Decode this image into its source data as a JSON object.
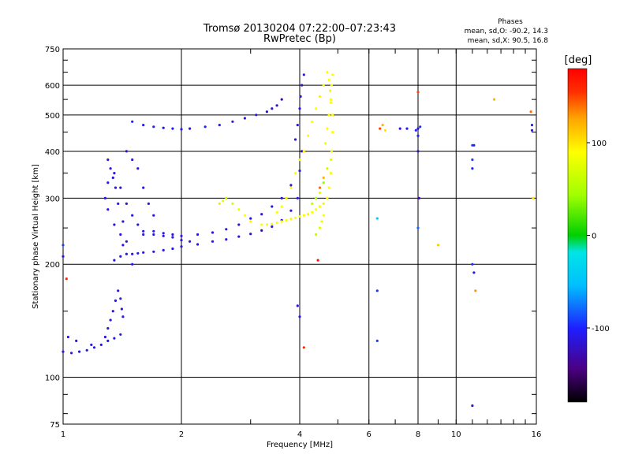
{
  "chart_data": {
    "type": "scatter",
    "title": "Tromsø 20130204 07:22:00–07:23:43",
    "subtitle": "RwPretec (Bp)",
    "xlabel": "Frequency [MHz]",
    "ylabel": "Stationary phase Virtual Height [km]",
    "x_scale": "log",
    "y_scale": "log",
    "xlim": [
      1,
      16
    ],
    "ylim": [
      75,
      750
    ],
    "x_ticks": [
      1,
      2,
      4,
      6,
      8,
      10,
      16
    ],
    "x_tick_labels": [
      "1",
      "2",
      "4",
      "6",
      "8",
      "10",
      "16"
    ],
    "y_ticks": [
      75,
      100,
      200,
      300,
      400,
      500,
      600,
      750
    ],
    "y_tick_labels": [
      "75",
      "100",
      "200",
      "300",
      "400",
      "500",
      "600",
      "750"
    ],
    "grid": true,
    "phases_legend": {
      "heading": "Phases",
      "line_o": "mean, sd,O:  -90.2, 14.3",
      "line_x": "mean, sd,X:  90.5, 16.8"
    },
    "colorbar": {
      "label": "[deg]",
      "range": [
        -180,
        180
      ],
      "ticks": [
        100,
        0,
        -100
      ],
      "tick_labels": [
        "100",
        "0",
        "-100"
      ],
      "colors": [
        "#000000",
        "#4b0082",
        "#1e1eff",
        "#00bfff",
        "#00e5e5",
        "#00d000",
        "#a0ff00",
        "#ffff00",
        "#ffa500",
        "#ff3000",
        "#ff0000"
      ]
    },
    "series": [
      {
        "x": [
          1.0,
          1.05,
          1.1,
          1.15,
          1.2,
          1.25,
          1.3,
          1.35,
          1.4,
          1.03,
          1.08,
          1.18,
          1.28,
          1.3,
          1.32,
          1.34,
          1.36,
          1.38,
          1.4,
          1.41,
          1.42,
          1.35,
          1.4,
          1.45,
          1.5,
          1.55,
          1.6,
          1.7,
          1.8,
          1.9,
          2.0,
          2.2,
          2.4,
          2.6,
          2.8,
          3.0,
          3.2,
          3.4,
          3.6,
          3.8,
          3.95,
          1.6,
          1.7,
          1.8,
          1.9,
          2.0,
          2.2,
          2.4,
          2.6,
          2.8,
          3.0,
          3.2,
          3.4,
          3.6,
          3.8,
          4.0,
          4.05,
          3.9,
          3.95,
          4.0,
          4.02,
          4.05,
          4.1,
          1.5,
          1.6,
          1.7,
          1.8,
          1.9,
          2.0,
          2.1,
          2.3,
          2.5,
          2.7,
          2.9,
          3.1,
          3.3,
          3.4,
          3.5,
          3.6,
          1.3,
          1.35,
          1.4,
          1.45,
          1.5,
          1.55,
          1.6,
          1.7,
          1.8,
          1.9,
          2.0,
          2.1,
          1.45,
          1.5,
          1.55,
          1.6,
          1.65,
          1.7,
          1.5,
          1.45,
          1.42,
          1.38,
          1.36,
          1.34,
          1.32,
          1.3,
          1.28,
          1.3,
          1.35,
          1.4,
          1.42,
          8.0,
          8.0,
          8.05,
          11.1,
          11.1
        ],
        "y": [
          117,
          116,
          117,
          118,
          120,
          122,
          125,
          127,
          130,
          128,
          125,
          122,
          128,
          135,
          142,
          150,
          160,
          170,
          162,
          152,
          145,
          205,
          210,
          213,
          213,
          214,
          215,
          216,
          218,
          220,
          223,
          226,
          230,
          233,
          237,
          241,
          246,
          252,
          262,
          278,
          300,
          240,
          245,
          242,
          240,
          238,
          240,
          243,
          248,
          255,
          265,
          272,
          285,
          300,
          325,
          355,
          400,
          430,
          470,
          520,
          560,
          600,
          640,
          480,
          470,
          465,
          462,
          460,
          458,
          460,
          465,
          470,
          480,
          490,
          500,
          510,
          520,
          530,
          550,
          380,
          350,
          320,
          290,
          270,
          255,
          245,
          240,
          238,
          236,
          232,
          230,
          400,
          380,
          360,
          320,
          290,
          270,
          200,
          230,
          260,
          290,
          320,
          340,
          360,
          330,
          300,
          280,
          255,
          240,
          225,
          460,
          400,
          300,
          415,
          190
        ],
        "c": [
          -110,
          -110,
          -108,
          -110,
          -112,
          -110,
          -108,
          -110,
          -110,
          -110,
          -112,
          -108,
          -110,
          -110,
          -110,
          -110,
          -110,
          -112,
          -108,
          -110,
          -110,
          -110,
          -112,
          -110,
          -110,
          -108,
          -110,
          -110,
          -112,
          -110,
          -110,
          -112,
          -110,
          -108,
          -110,
          -120,
          -130,
          -110,
          -112,
          -110,
          -108,
          -110,
          -110,
          -110,
          -110,
          -110,
          -110,
          -112,
          -110,
          -108,
          -110,
          -110,
          -110,
          -112,
          -110,
          -110,
          -120,
          -110,
          -112,
          -110,
          -115,
          -120,
          -110,
          -100,
          -100,
          -105,
          -110,
          -100,
          -105,
          -110,
          -100,
          -100,
          -105,
          -110,
          -110,
          -115,
          -120,
          -125,
          -130,
          -110,
          -110,
          -112,
          -110,
          -108,
          -110,
          -110,
          -110,
          -112,
          -110,
          -110,
          -110,
          -110,
          -112,
          -110,
          -110,
          -108,
          -110,
          -110,
          -112,
          -110,
          -108,
          -110,
          -110,
          -112,
          -110,
          -110,
          -110,
          -112,
          -110,
          -110,
          -120,
          -125,
          -130,
          -110,
          -110
        ]
      },
      {
        "x": [
          3.2,
          3.3,
          3.4,
          3.5,
          3.6,
          3.7,
          3.8,
          3.9,
          4.0,
          4.1,
          4.2,
          4.3,
          4.4,
          4.5,
          4.6,
          4.7,
          4.75,
          4.8,
          4.82,
          4.85,
          4.85,
          4.8,
          4.78,
          4.75,
          4.7,
          4.6,
          4.5,
          4.4,
          4.3,
          4.2,
          4.1,
          4.0,
          3.9,
          3.8,
          3.7,
          3.6,
          3.5,
          4.3,
          4.4,
          4.5,
          4.6,
          4.7,
          4.8,
          4.65,
          4.7,
          4.75,
          4.8,
          4.82,
          4.85,
          4.5,
          4.6,
          2.6,
          2.7,
          2.8,
          2.9,
          3.0,
          2.5,
          2.55,
          4.4,
          4.5,
          4.55,
          4.6,
          6.4,
          6.5,
          6.6,
          8.0,
          9.0,
          12.5,
          15.5,
          15.7,
          4.1,
          4.45
        ],
        "y": [
          255,
          255,
          256,
          258,
          260,
          262,
          264,
          266,
          268,
          270,
          272,
          275,
          280,
          285,
          290,
          300,
          320,
          350,
          400,
          450,
          500,
          540,
          580,
          620,
          650,
          600,
          560,
          520,
          480,
          440,
          400,
          380,
          350,
          320,
          300,
          285,
          275,
          290,
          300,
          310,
          330,
          360,
          380,
          420,
          460,
          500,
          550,
          600,
          640,
          320,
          340,
          300,
          290,
          280,
          270,
          260,
          290,
          295,
          240,
          250,
          260,
          270,
          460,
          470,
          455,
          575,
          225,
          550,
          510,
          300,
          120,
          205
        ],
        "c": [
          90,
          92,
          95,
          90,
          88,
          92,
          95,
          90,
          88,
          92,
          95,
          90,
          88,
          92,
          95,
          90,
          88,
          92,
          95,
          90,
          88,
          92,
          95,
          90,
          88,
          92,
          95,
          90,
          88,
          92,
          95,
          90,
          88,
          92,
          95,
          90,
          88,
          60,
          50,
          70,
          40,
          65,
          75,
          85,
          90,
          95,
          88,
          92,
          90,
          140,
          120,
          60,
          70,
          80,
          90,
          95,
          100,
          80,
          60,
          70,
          80,
          90,
          150,
          120,
          100,
          150,
          110,
          120,
          140,
          100,
          160,
          170
        ]
      },
      {
        "x": [
          6.3,
          6.3,
          6.3,
          7.2,
          7.5,
          7.9,
          8.0,
          8.1,
          8.0,
          11.0,
          11.0,
          11.0,
          11.0,
          11.0,
          11.2,
          15.6,
          15.6,
          1.0,
          1.0,
          1.02,
          4.0,
          3.95
        ],
        "y": [
          170,
          125,
          265,
          460,
          460,
          455,
          250,
          465,
          440,
          200,
          380,
          360,
          84,
          415,
          170,
          455,
          470,
          225,
          210,
          183,
          145,
          155
        ],
        "c": [
          -95,
          -90,
          -40,
          -110,
          -105,
          -100,
          -80,
          -95,
          -100,
          -95,
          -90,
          -100,
          -120,
          -95,
          130,
          -110,
          -100,
          -90,
          -110,
          160,
          -110,
          -110
        ]
      }
    ]
  }
}
